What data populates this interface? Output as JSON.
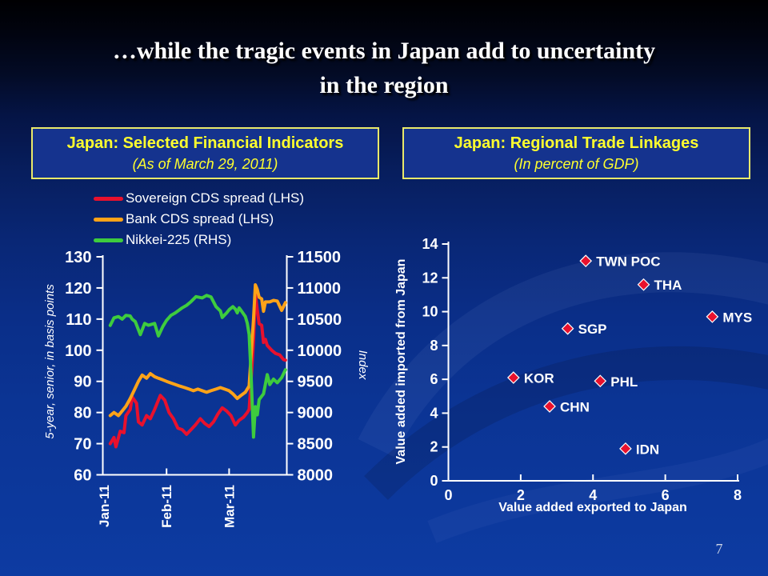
{
  "slide": {
    "title_line1": "…while the tragic events in Japan add to uncertainty",
    "title_line2": "in the region",
    "page_number": "7"
  },
  "left_panel": {
    "header": {
      "title": "Japan: Selected Financial Indicators",
      "subtitle": "(As of March 29, 2011)"
    }
  },
  "right_panel": {
    "header": {
      "title": "Japan: Regional Trade Linkages",
      "subtitle": "(In percent of GDP)"
    }
  },
  "colors": {
    "background_bottom": "#0d3ba2",
    "box_fill": "#15338e",
    "box_border": "#e9e96a",
    "heading_yellow": "#ffff2e",
    "axis_white": "#ffffff",
    "sovereign_red": "#e8112d",
    "bank_orange": "#ffa318",
    "nikkei_green": "#3ecc3e"
  },
  "chart_data": [
    {
      "type": "line",
      "title": "Japan: Selected Financial Indicators",
      "subtitle": "(As of March 29, 2011)",
      "x_ticks": [
        "Jan-11",
        "Feb-11",
        "Mar-11"
      ],
      "x_unit": "months since Jan 1, 2011",
      "left_axis": {
        "label": "5-year, senior, in basis points",
        "min": 60,
        "max": 130,
        "step": 10
      },
      "right_axis": {
        "label": "Index",
        "min": 8000,
        "max": 11500,
        "step": 500
      },
      "grid": false,
      "legend_position": "top-left",
      "series": [
        {
          "name": "Sovereign CDS spread (LHS)",
          "axis": "left",
          "color": "#e8112d",
          "points": [
            [
              0.1,
              70
            ],
            [
              0.16,
              72
            ],
            [
              0.19,
              69
            ],
            [
              0.26,
              74
            ],
            [
              0.32,
              73.5
            ],
            [
              0.35,
              79
            ],
            [
              0.42,
              81
            ],
            [
              0.45,
              85
            ],
            [
              0.52,
              83
            ],
            [
              0.55,
              77
            ],
            [
              0.61,
              76
            ],
            [
              0.68,
              79
            ],
            [
              0.74,
              78
            ],
            [
              0.81,
              81
            ],
            [
              0.87,
              84
            ],
            [
              0.9,
              85.5
            ],
            [
              0.97,
              84
            ],
            [
              1.04,
              80
            ],
            [
              1.11,
              78
            ],
            [
              1.18,
              75
            ],
            [
              1.25,
              74.5
            ],
            [
              1.32,
              73
            ],
            [
              1.39,
              74.5
            ],
            [
              1.46,
              76
            ],
            [
              1.54,
              78
            ],
            [
              1.61,
              76.5
            ],
            [
              1.68,
              75.5
            ],
            [
              1.75,
              77
            ],
            [
              1.82,
              79.5
            ],
            [
              1.89,
              81.5
            ],
            [
              1.96,
              80.5
            ],
            [
              2.03,
              79
            ],
            [
              2.1,
              76
            ],
            [
              2.16,
              77.5
            ],
            [
              2.23,
              78.5
            ],
            [
              2.29,
              80
            ],
            [
              2.32,
              81
            ],
            [
              2.35,
              90
            ],
            [
              2.39,
              103
            ],
            [
              2.42,
              118
            ],
            [
              2.45,
              113
            ],
            [
              2.48,
              108.5
            ],
            [
              2.52,
              108
            ],
            [
              2.55,
              102.5
            ],
            [
              2.58,
              103.5
            ],
            [
              2.61,
              101.5
            ],
            [
              2.68,
              100
            ],
            [
              2.74,
              99
            ],
            [
              2.81,
              98.5
            ],
            [
              2.87,
              97
            ],
            [
              2.9,
              96.8
            ]
          ]
        },
        {
          "name": "Bank CDS spread (LHS)",
          "axis": "left",
          "color": "#ffa318",
          "points": [
            [
              0.1,
              79
            ],
            [
              0.16,
              80
            ],
            [
              0.23,
              79
            ],
            [
              0.29,
              80.5
            ],
            [
              0.35,
              82
            ],
            [
              0.42,
              84.5
            ],
            [
              0.48,
              87
            ],
            [
              0.55,
              90
            ],
            [
              0.61,
              92
            ],
            [
              0.68,
              91
            ],
            [
              0.74,
              92.5
            ],
            [
              0.81,
              91.5
            ],
            [
              0.87,
              91
            ],
            [
              0.94,
              90.5
            ],
            [
              1.0,
              90
            ],
            [
              1.07,
              89.5
            ],
            [
              1.14,
              89
            ],
            [
              1.21,
              88.5
            ],
            [
              1.29,
              88
            ],
            [
              1.36,
              87.5
            ],
            [
              1.43,
              87
            ],
            [
              1.5,
              87.5
            ],
            [
              1.57,
              87
            ],
            [
              1.64,
              86.5
            ],
            [
              1.71,
              87
            ],
            [
              1.79,
              87.5
            ],
            [
              1.86,
              88
            ],
            [
              1.93,
              87.5
            ],
            [
              2.0,
              87
            ],
            [
              2.06,
              86
            ],
            [
              2.13,
              84.5
            ],
            [
              2.19,
              85.5
            ],
            [
              2.26,
              86.5
            ],
            [
              2.32,
              88.5
            ],
            [
              2.35,
              98
            ],
            [
              2.39,
              110
            ],
            [
              2.42,
              121
            ],
            [
              2.45,
              119.5
            ],
            [
              2.48,
              117
            ],
            [
              2.52,
              116.5
            ],
            [
              2.55,
              112.5
            ],
            [
              2.58,
              115.5
            ],
            [
              2.65,
              115.5
            ],
            [
              2.71,
              116
            ],
            [
              2.77,
              115.8
            ],
            [
              2.84,
              112.8
            ],
            [
              2.9,
              115.3
            ]
          ]
        },
        {
          "name": "Nikkei-225 (RHS)",
          "axis": "right",
          "color": "#3ecc3e",
          "points": [
            [
              0.1,
              10398
            ],
            [
              0.16,
              10520
            ],
            [
              0.23,
              10541
            ],
            [
              0.29,
              10500
            ],
            [
              0.35,
              10560
            ],
            [
              0.42,
              10550
            ],
            [
              0.45,
              10499
            ],
            [
              0.5,
              10460
            ],
            [
              0.58,
              10250
            ],
            [
              0.65,
              10430
            ],
            [
              0.71,
              10400
            ],
            [
              0.81,
              10430
            ],
            [
              0.87,
              10230
            ],
            [
              0.94,
              10380
            ],
            [
              1.0,
              10480
            ],
            [
              1.07,
              10560
            ],
            [
              1.14,
              10600
            ],
            [
              1.25,
              10680
            ],
            [
              1.32,
              10720
            ],
            [
              1.39,
              10780
            ],
            [
              1.47,
              10860
            ],
            [
              1.57,
              10840
            ],
            [
              1.64,
              10880
            ],
            [
              1.71,
              10857
            ],
            [
              1.79,
              10700
            ],
            [
              1.86,
              10630
            ],
            [
              1.89,
              10526
            ],
            [
              1.96,
              10600
            ],
            [
              2.0,
              10650
            ],
            [
              2.06,
              10700
            ],
            [
              2.1,
              10660
            ],
            [
              2.13,
              10600
            ],
            [
              2.16,
              10680
            ],
            [
              2.19,
              10640
            ],
            [
              2.26,
              10540
            ],
            [
              2.29,
              10434
            ],
            [
              2.32,
              10254
            ],
            [
              2.35,
              9620
            ],
            [
              2.39,
              8605
            ],
            [
              2.42,
              9093
            ],
            [
              2.45,
              8962
            ],
            [
              2.48,
              9206
            ],
            [
              2.55,
              9300
            ],
            [
              2.61,
              9608
            ],
            [
              2.65,
              9449
            ],
            [
              2.71,
              9536
            ],
            [
              2.77,
              9478
            ],
            [
              2.84,
              9560
            ],
            [
              2.9,
              9686
            ]
          ]
        }
      ]
    },
    {
      "type": "scatter",
      "title": "Japan: Regional Trade Linkages",
      "subtitle": "(In percent of GDP)",
      "xlabel": "Value added exported to Japan",
      "ylabel": "Value added imported from Japan",
      "xlim": [
        0,
        8
      ],
      "ylim": [
        0,
        14
      ],
      "x_ticks": [
        0,
        2,
        4,
        6,
        8
      ],
      "y_ticks": [
        0,
        2,
        4,
        6,
        8,
        10,
        12,
        14
      ],
      "grid": false,
      "marker": {
        "shape": "diamond",
        "color": "#e8112d",
        "outline": "#ffffff"
      },
      "points": [
        {
          "label": "TWN POC",
          "x": 3.8,
          "y": 13.0
        },
        {
          "label": "THA",
          "x": 5.4,
          "y": 11.6
        },
        {
          "label": "MYS",
          "x": 7.3,
          "y": 9.7
        },
        {
          "label": "SGP",
          "x": 3.3,
          "y": 9.0
        },
        {
          "label": "KOR",
          "x": 1.8,
          "y": 6.1
        },
        {
          "label": "PHL",
          "x": 4.2,
          "y": 5.9
        },
        {
          "label": "CHN",
          "x": 2.8,
          "y": 4.4
        },
        {
          "label": "IDN",
          "x": 4.9,
          "y": 1.9
        }
      ]
    }
  ]
}
